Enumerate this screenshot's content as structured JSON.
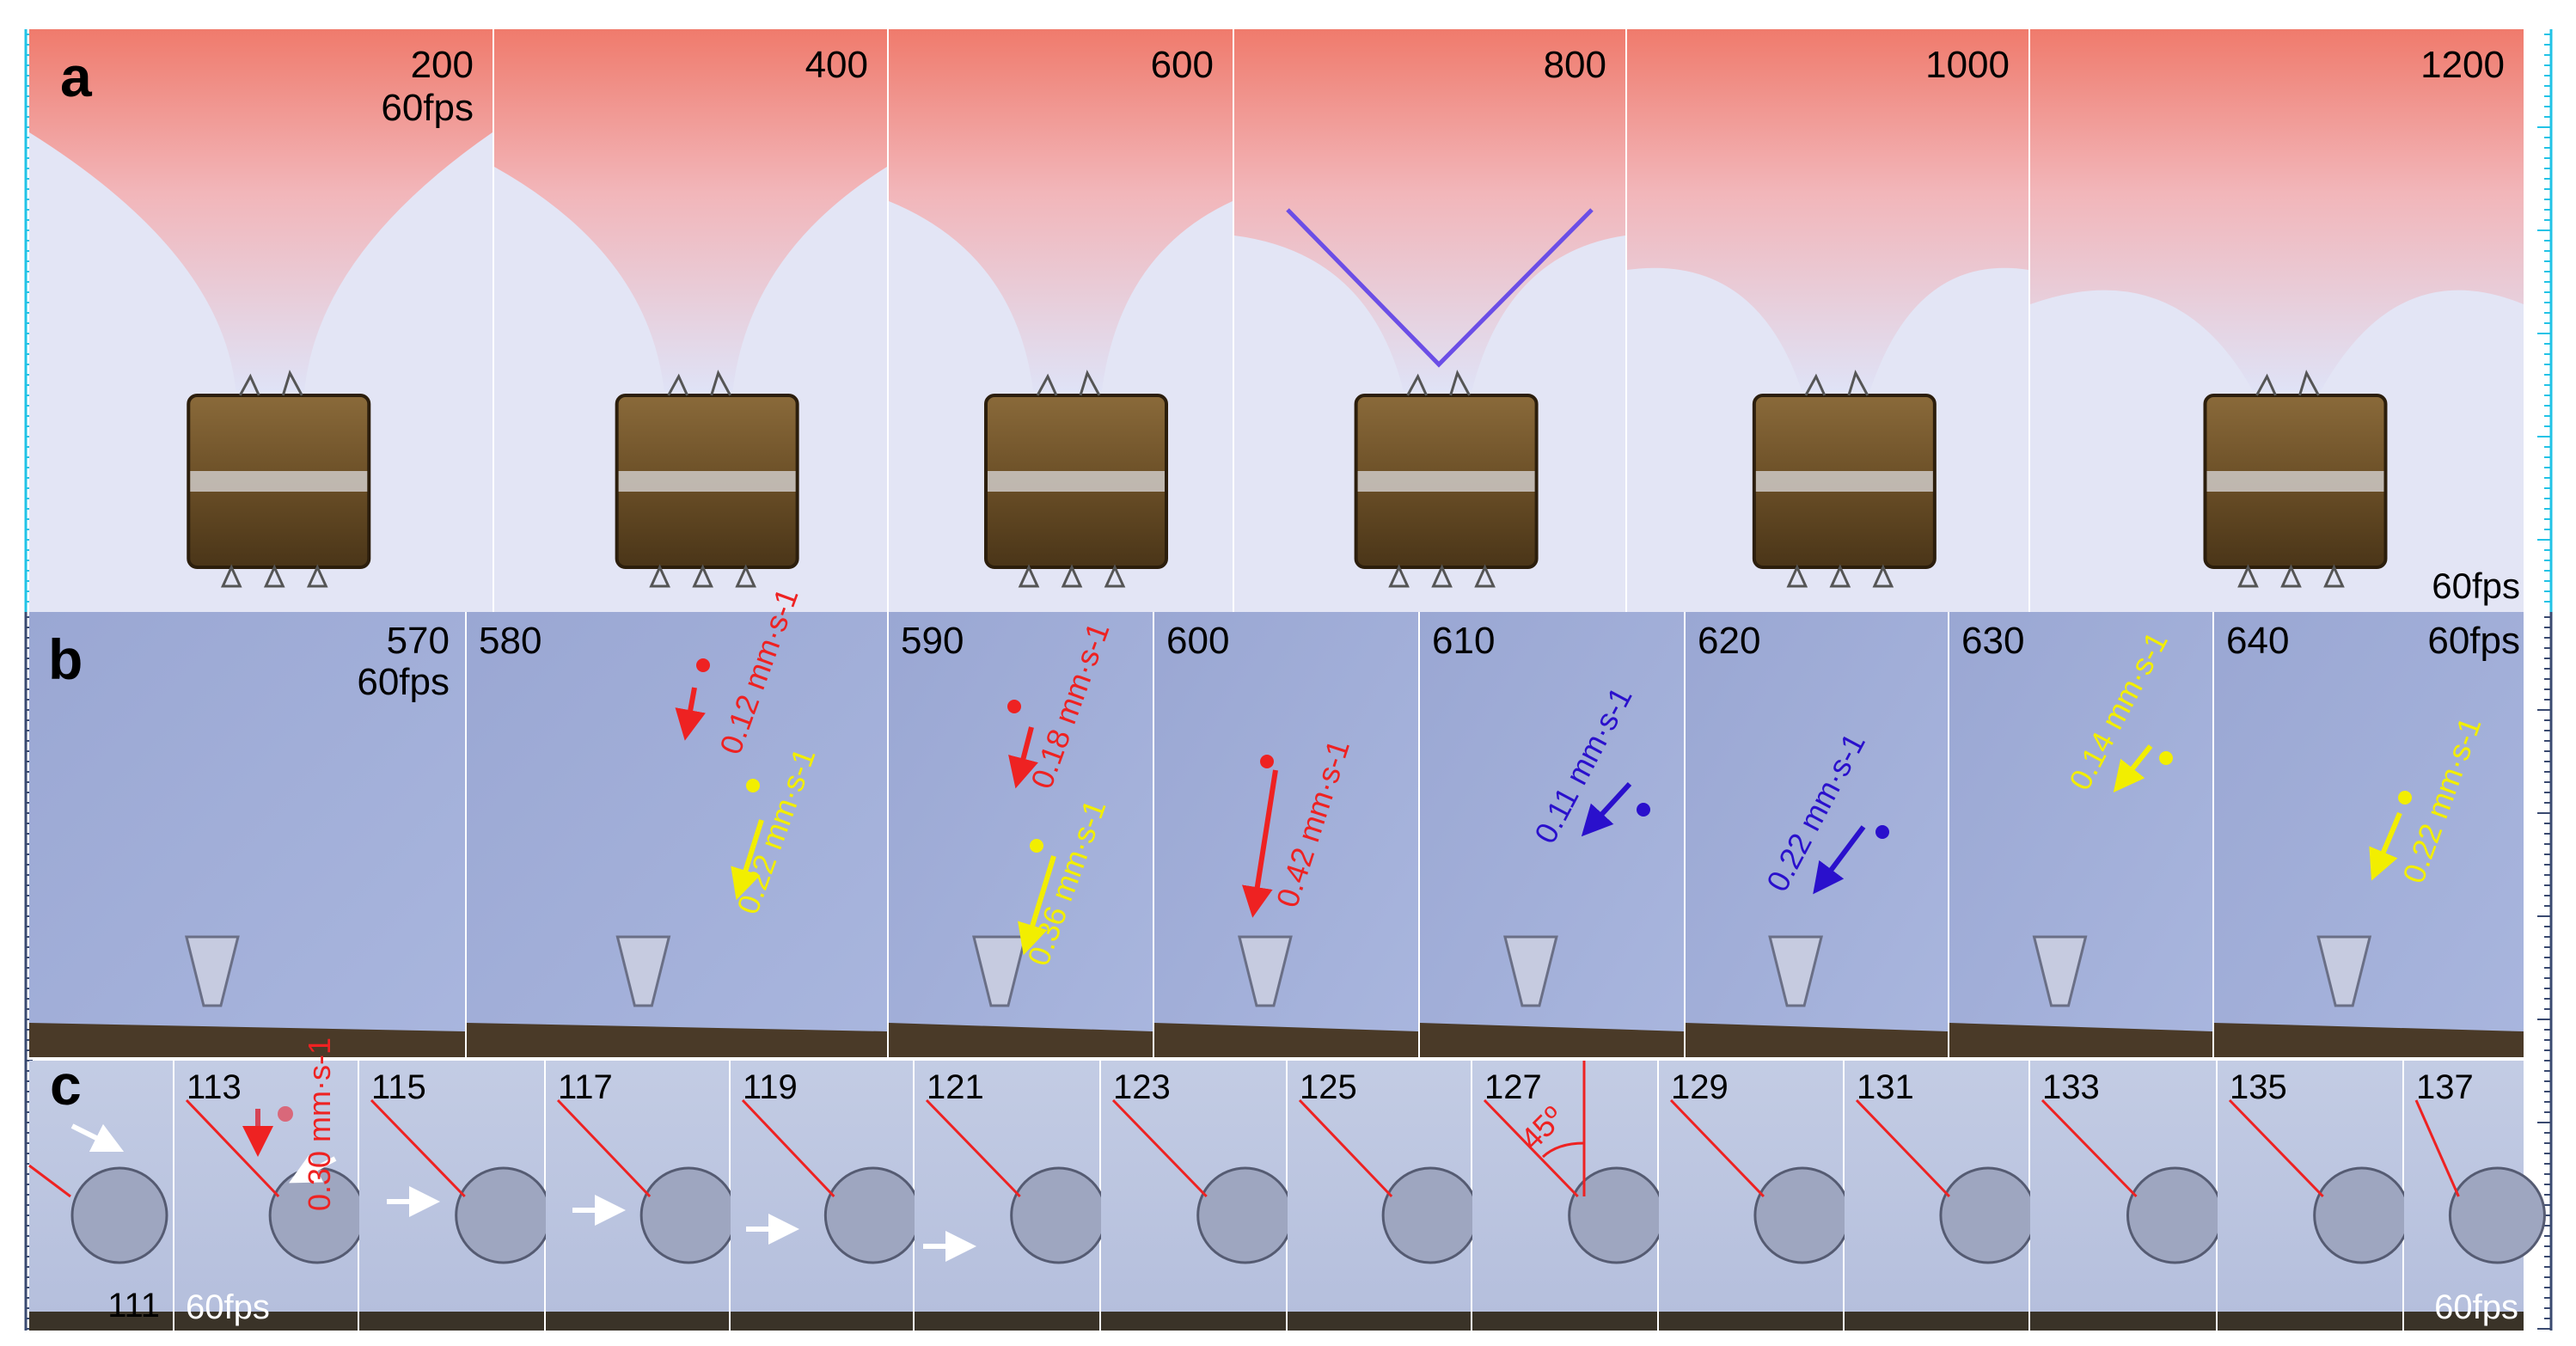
{
  "panel_labels": {
    "a": "a",
    "b": "b",
    "c": "c"
  },
  "row_a": {
    "frames": [
      "200",
      "400",
      "600",
      "800",
      "1000",
      "1200"
    ],
    "fps_first": "60fps",
    "fps_last": "60fps",
    "angle_marker_color": "#6b4ee6"
  },
  "row_b": {
    "frames": [
      "570",
      "580",
      "590",
      "600",
      "610",
      "620",
      "630",
      "640"
    ],
    "fps_first": "60fps",
    "fps_last": "60fps",
    "speeds": {
      "b580_red": "0.12 mm·s-1",
      "b580_yellow": "0.22 mm·s-1",
      "b590_red": "0.18 mm·s-1",
      "b590_yellow": "0.36 mm·s-1",
      "b600_red": "0.42 mm·s-1",
      "b610_blue": "0.11 mm·s-1",
      "b620_blue": "0.22 mm·s-1",
      "b630_yellow": "0.14 mm·s-1",
      "b640_yellow": "0.22 mm·s-1"
    },
    "colors": {
      "red": "#ee2222",
      "yellow": "#f2ee00",
      "blue": "#2a10cc"
    }
  },
  "row_c": {
    "first_frame": "111",
    "frames": [
      "113",
      "115",
      "117",
      "119",
      "121",
      "123",
      "125",
      "127",
      "129",
      "131",
      "133",
      "135",
      "137"
    ],
    "fps_first": "60fps",
    "fps_last": "60fps",
    "speed": "0.30 mm·s-1",
    "angle": "45º"
  }
}
